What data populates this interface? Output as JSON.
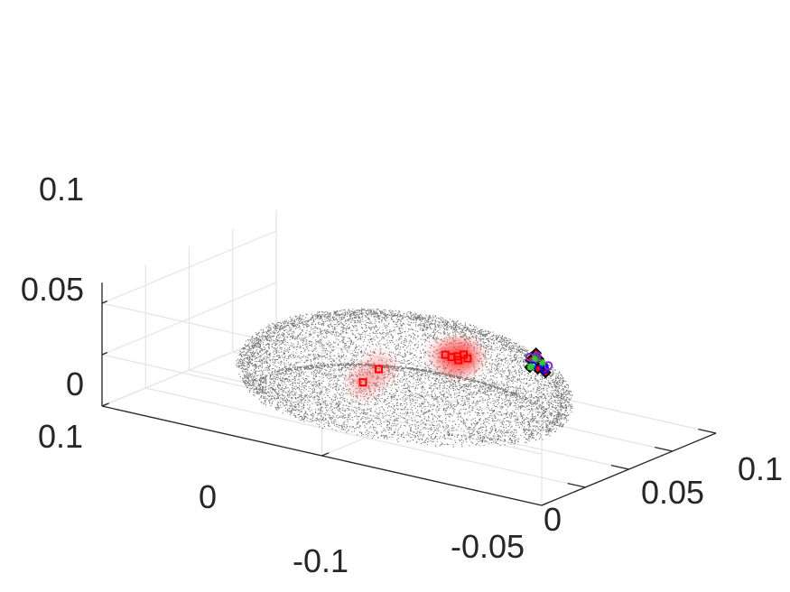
{
  "chart_data": {
    "type": "scatter",
    "title": "",
    "xlabel": "",
    "ylabel": "",
    "zlabel": "",
    "grid": true,
    "x_ticks": [
      "-0.05",
      "0",
      "0.05",
      "0.1"
    ],
    "y_ticks": [
      "0.1",
      "0",
      "-0.1"
    ],
    "z_ticks": [
      "0.1",
      "0.05",
      "0"
    ],
    "xlim": [
      -0.1,
      0.1
    ],
    "ylim": [
      -0.1,
      0.1
    ],
    "zlim": [
      0,
      0.12
    ],
    "series": [
      {
        "kind": "cortex-point-cloud",
        "marker": "dot",
        "color": "#000000",
        "x_range": [
          -0.085,
          0.075
        ],
        "y_range": [
          -0.07,
          0.07
        ],
        "z_range": [
          -0.02,
          0.095
        ]
      },
      {
        "kind": "cluster",
        "marker": "square",
        "color": "#ff0000",
        "glow": true,
        "points": [
          {
            "x": -0.02,
            "y": -0.03,
            "z": 0.083
          },
          {
            "x": -0.018,
            "y": -0.032,
            "z": 0.085
          },
          {
            "x": -0.022,
            "y": -0.028,
            "z": 0.082
          },
          {
            "x": -0.016,
            "y": -0.033,
            "z": 0.081
          },
          {
            "x": -0.024,
            "y": -0.026,
            "z": 0.084
          },
          {
            "x": -0.019,
            "y": -0.03,
            "z": 0.079
          },
          {
            "x": -0.06,
            "y": -0.01,
            "z": 0.075
          },
          {
            "x": -0.068,
            "y": -0.006,
            "z": 0.063
          }
        ]
      },
      {
        "kind": "cluster",
        "marker": "diamond",
        "color": "#ff0000",
        "edge_color": "#000000",
        "points": [
          {
            "x": 0.06,
            "y": -0.034,
            "z": 0.06
          },
          {
            "x": 0.058,
            "y": -0.036,
            "z": 0.056
          },
          {
            "x": 0.062,
            "y": -0.032,
            "z": 0.054
          },
          {
            "x": 0.056,
            "y": -0.038,
            "z": 0.052
          },
          {
            "x": 0.064,
            "y": -0.03,
            "z": 0.05
          },
          {
            "x": 0.06,
            "y": -0.036,
            "z": 0.048
          },
          {
            "x": 0.058,
            "y": -0.032,
            "z": 0.046
          },
          {
            "x": 0.062,
            "y": -0.034,
            "z": 0.044
          },
          {
            "x": 0.066,
            "y": -0.036,
            "z": 0.04
          }
        ]
      },
      {
        "kind": "cluster",
        "marker": "circle",
        "color": "#0000ff",
        "points": [
          {
            "x": 0.054,
            "y": -0.04,
            "z": 0.052
          },
          {
            "x": 0.06,
            "y": -0.038,
            "z": 0.046
          },
          {
            "x": 0.056,
            "y": -0.034,
            "z": 0.049
          }
        ]
      },
      {
        "kind": "cluster",
        "marker": "circle",
        "color": "#7f2fbf",
        "points": [
          {
            "x": 0.055,
            "y": -0.036,
            "z": 0.058
          },
          {
            "x": 0.061,
            "y": -0.034,
            "z": 0.057
          },
          {
            "x": 0.059,
            "y": -0.04,
            "z": 0.051
          },
          {
            "x": 0.063,
            "y": -0.03,
            "z": 0.053
          }
        ]
      },
      {
        "kind": "cluster",
        "marker": "star",
        "color": "#33cc33",
        "points": [
          {
            "x": 0.059,
            "y": -0.034,
            "z": 0.055
          },
          {
            "x": 0.062,
            "y": -0.036,
            "z": 0.051
          },
          {
            "x": 0.057,
            "y": -0.033,
            "z": 0.047
          },
          {
            "x": 0.061,
            "y": -0.031,
            "z": 0.045
          }
        ]
      }
    ]
  }
}
